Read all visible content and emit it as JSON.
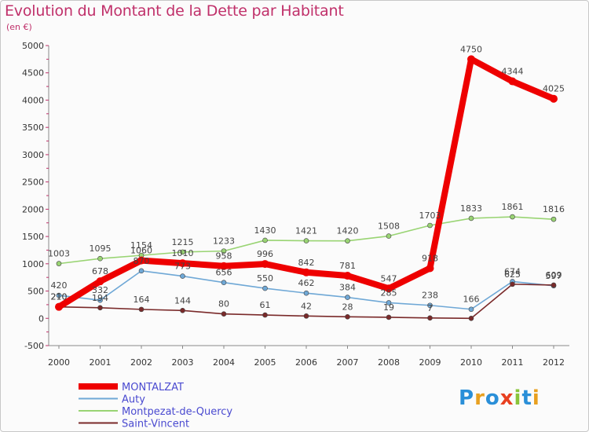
{
  "chart_data": {
    "type": "line",
    "title": "Evolution du Montant de la Dette par Habitant",
    "subtitle": "(en €)",
    "x": [
      "2000",
      "2001",
      "2002",
      "2003",
      "2004",
      "2005",
      "2006",
      "2007",
      "2008",
      "2009",
      "2010",
      "2011",
      "2012"
    ],
    "ylim": [
      -500,
      5000
    ],
    "yticks": [
      "-500",
      "0",
      "500",
      "1000",
      "1500",
      "2000",
      "2500",
      "3000",
      "3500",
      "4000",
      "4500",
      "5000"
    ],
    "grid": false,
    "legend_position": "bottom-left",
    "series": [
      {
        "name": "MONTALZAT",
        "color": "#ee0000",
        "values": [
          210,
          678,
          1060,
          1010,
          958,
          996,
          842,
          781,
          547,
          918,
          4750,
          4344,
          4025
        ],
        "labels": [
          "210",
          "678",
          "1060",
          "1010",
          "958",
          "996",
          "842",
          "781",
          "547",
          "918",
          "4750",
          "4344",
          "4025"
        ]
      },
      {
        "name": "Auty",
        "color": "#6fa8d6",
        "values": [
          420,
          332,
          870,
          773,
          656,
          550,
          462,
          384,
          285,
          238,
          166,
          674,
          597
        ],
        "labels": [
          "420",
          "332",
          "870",
          "773",
          "656",
          "550",
          "462",
          "384",
          "285",
          "238",
          "166",
          "674",
          "597"
        ]
      },
      {
        "name": "Montpezat-de-Quercy",
        "color": "#99d473",
        "values": [
          1003,
          1095,
          1154,
          1215,
          1233,
          1430,
          1421,
          1420,
          1508,
          1703,
          1833,
          1861,
          1816
        ],
        "labels": [
          "1003",
          "1095",
          "1154",
          "1215",
          "1233",
          "1430",
          "1421",
          "1420",
          "1508",
          "1703",
          "1833",
          "1861",
          "1816"
        ]
      },
      {
        "name": "Saint-Vincent",
        "color": "#7a2a2a",
        "values": [
          210,
          194,
          164,
          144,
          80,
          61,
          42,
          28,
          19,
          7,
          0,
          625,
          609
        ],
        "labels": [
          "210",
          "194",
          "164",
          "144",
          "80",
          "61",
          "42",
          "28",
          "19",
          "7",
          "",
          "625",
          "609"
        ]
      }
    ]
  },
  "logo": {
    "letters": [
      "P",
      "r",
      "o",
      "x",
      "i",
      "t",
      "i"
    ],
    "colors": [
      "#2a8fd8",
      "#e8a020",
      "#2a8fd8",
      "#e84020",
      "#8ac43a",
      "#2a8fd8",
      "#e8a020"
    ]
  }
}
